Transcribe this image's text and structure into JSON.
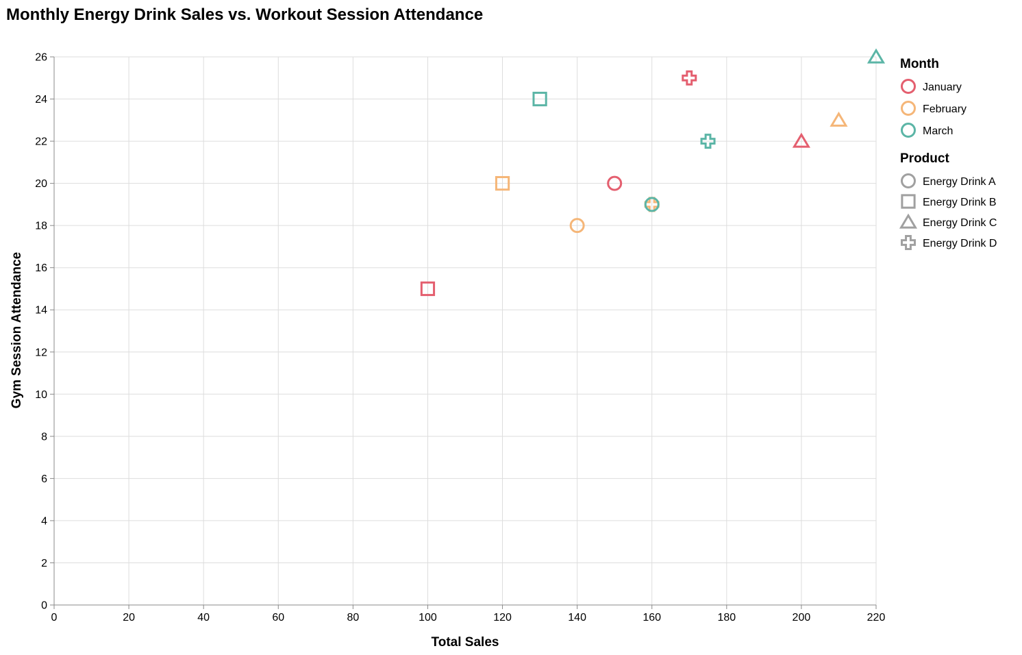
{
  "chart_data": {
    "type": "scatter",
    "title": "Monthly Energy Drink Sales vs. Workout Session Attendance",
    "xlabel": "Total Sales",
    "ylabel": "Gym Session Attendance",
    "xlim": [
      0,
      220
    ],
    "ylim": [
      0,
      26
    ],
    "x_ticks": [
      "0",
      "20",
      "40",
      "60",
      "80",
      "100",
      "120",
      "140",
      "160",
      "180",
      "200",
      "220"
    ],
    "y_ticks": [
      "0",
      "2",
      "4",
      "6",
      "8",
      "10",
      "12",
      "14",
      "16",
      "18",
      "20",
      "22",
      "24",
      "26"
    ],
    "grid": true,
    "legend_placement": "right",
    "color_legend": {
      "title": "Month",
      "items": [
        {
          "label": "January",
          "color": "#e45f6f"
        },
        {
          "label": "February",
          "color": "#f5b678"
        },
        {
          "label": "March",
          "color": "#5bb5a6"
        }
      ]
    },
    "shape_legend": {
      "title": "Product",
      "items": [
        {
          "label": "Energy Drink A",
          "shape": "circle"
        },
        {
          "label": "Energy Drink B",
          "shape": "square"
        },
        {
          "label": "Energy Drink C",
          "shape": "triangle"
        },
        {
          "label": "Energy Drink D",
          "shape": "cross"
        }
      ]
    },
    "points": [
      {
        "month": "January",
        "product": "Energy Drink A",
        "x": 150,
        "y": 20
      },
      {
        "month": "January",
        "product": "Energy Drink B",
        "x": 100,
        "y": 15
      },
      {
        "month": "January",
        "product": "Energy Drink C",
        "x": 200,
        "y": 22
      },
      {
        "month": "January",
        "product": "Energy Drink D",
        "x": 170,
        "y": 25
      },
      {
        "month": "February",
        "product": "Energy Drink A",
        "x": 140,
        "y": 18
      },
      {
        "month": "February",
        "product": "Energy Drink B",
        "x": 120,
        "y": 20
      },
      {
        "month": "February",
        "product": "Energy Drink C",
        "x": 210,
        "y": 23
      },
      {
        "month": "February",
        "product": "Energy Drink D",
        "x": 160,
        "y": 19
      },
      {
        "month": "March",
        "product": "Energy Drink A",
        "x": 160,
        "y": 19
      },
      {
        "month": "March",
        "product": "Energy Drink B",
        "x": 130,
        "y": 24
      },
      {
        "month": "March",
        "product": "Energy Drink C",
        "x": 220,
        "y": 26
      },
      {
        "month": "March",
        "product": "Energy Drink D",
        "x": 175,
        "y": 22
      }
    ]
  }
}
